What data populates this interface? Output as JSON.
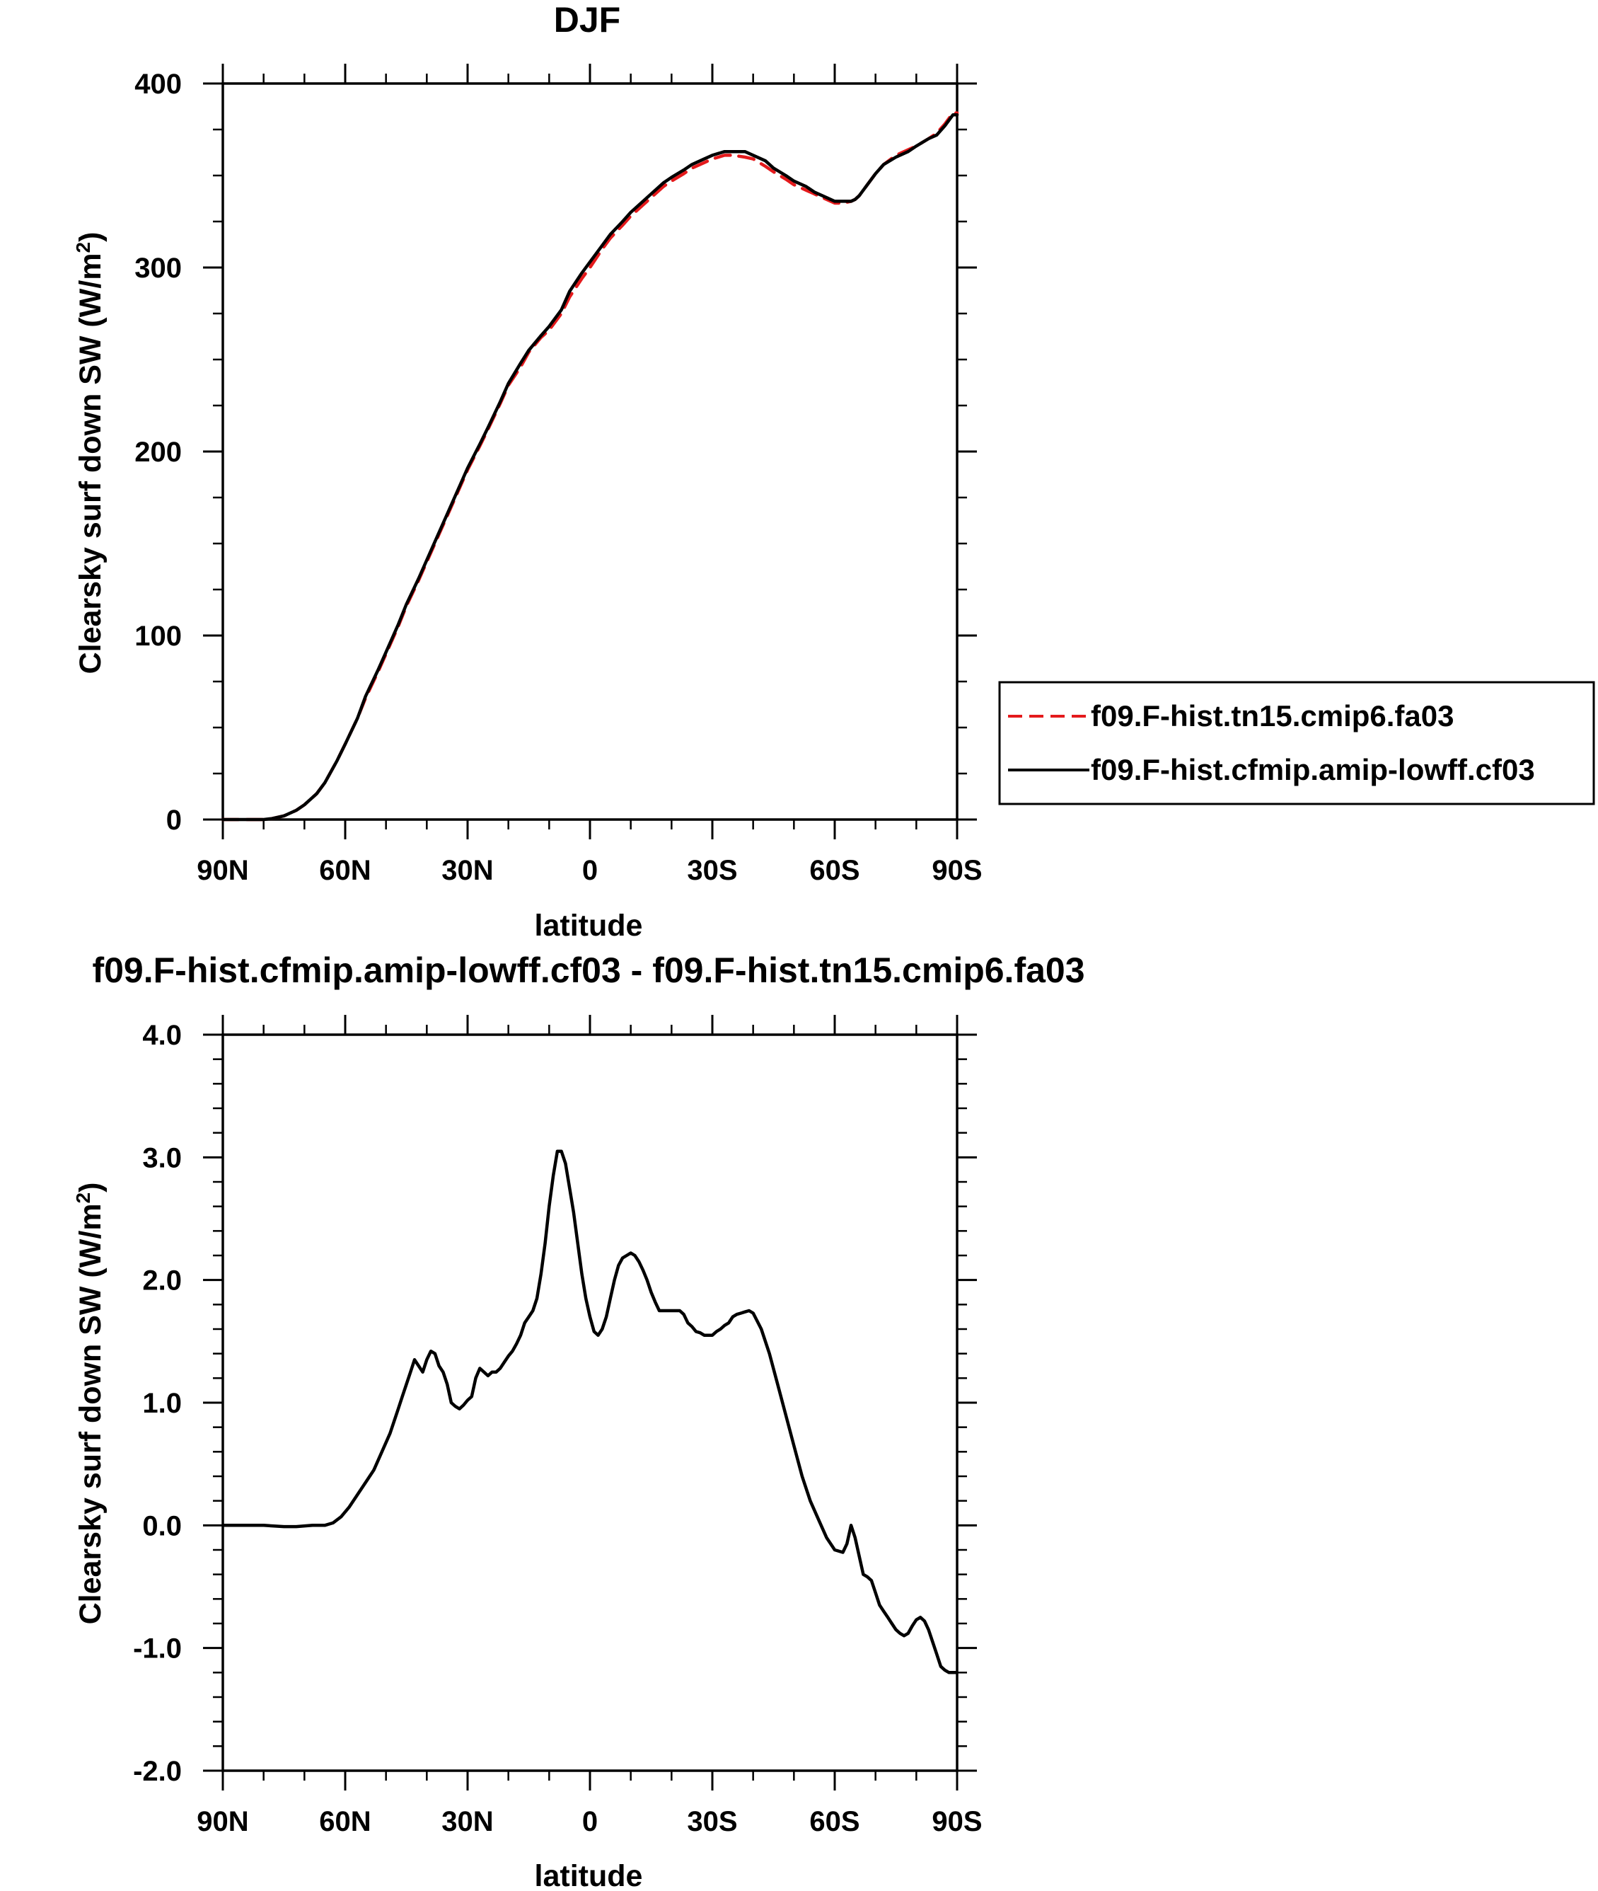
{
  "chart_data": [
    {
      "type": "line",
      "title": "DJF",
      "xlabel": "latitude",
      "ylabel": "Clearsky surf down SW (W/m",
      "ylabel_sup": "2",
      "ylabel_close": ")",
      "xlim": [
        90,
        -90
      ],
      "ylim": [
        0,
        400
      ],
      "x_ticks": [
        90,
        60,
        30,
        0,
        -30,
        -60,
        -90
      ],
      "x_tick_labels": [
        "90N",
        "60N",
        "30N",
        "0",
        "30S",
        "60S",
        "90S"
      ],
      "y_ticks": [
        0,
        100,
        200,
        300,
        400
      ],
      "y_tick_labels": [
        "0",
        "100",
        "200",
        "300",
        "400"
      ],
      "legend_position": "right",
      "series": [
        {
          "name": "f09.F-hist.tn15.cmip6.fa03",
          "color": "#e41a1c",
          "dash": "dashed",
          "x": [
            90,
            85,
            80,
            78,
            75,
            72,
            70,
            67,
            65,
            62,
            60,
            57,
            55,
            52,
            50,
            47,
            45,
            42,
            40,
            37,
            35,
            32,
            30,
            27,
            25,
            22,
            20,
            17,
            15,
            12,
            10,
            7,
            5,
            2,
            0,
            -3,
            -5,
            -8,
            -10,
            -13,
            -15,
            -18,
            -20,
            -23,
            -25,
            -28,
            -30,
            -33,
            -35,
            -38,
            -40,
            -43,
            -45,
            -48,
            -50,
            -53,
            -55,
            -58,
            -60,
            -62,
            -64,
            -65,
            -66,
            -68,
            -70,
            -72,
            -75,
            -78,
            -80,
            -83,
            -85,
            -87,
            -89,
            -90
          ],
          "y": [
            0,
            0,
            0,
            0.5,
            2,
            5,
            8,
            14,
            20,
            32,
            41,
            55,
            66,
            80,
            90,
            105,
            116,
            130,
            140,
            155,
            165,
            180,
            190,
            203,
            212,
            226,
            236,
            246,
            254,
            262,
            266,
            275,
            284,
            294,
            300,
            310,
            316,
            323,
            328,
            334,
            338,
            344,
            347,
            351,
            354,
            357,
            359,
            361,
            361,
            360,
            359,
            355,
            352,
            348,
            345,
            342,
            340,
            337,
            335,
            335,
            336,
            337,
            339,
            345,
            351,
            356,
            361,
            364,
            366,
            370,
            373,
            378,
            384,
            384
          ]
        },
        {
          "name": "f09.F-hist.cfmip.amip-lowff.cf03",
          "color": "#000000",
          "dash": "solid",
          "x": [
            90,
            85,
            80,
            78,
            75,
            72,
            70,
            67,
            65,
            62,
            60,
            57,
            55,
            52,
            50,
            47,
            45,
            42,
            40,
            37,
            35,
            32,
            30,
            27,
            25,
            22,
            20,
            17,
            15,
            12,
            10,
            7,
            5,
            2,
            0,
            -3,
            -5,
            -8,
            -10,
            -13,
            -15,
            -18,
            -20,
            -23,
            -25,
            -28,
            -30,
            -33,
            -35,
            -38,
            -40,
            -43,
            -45,
            -48,
            -50,
            -53,
            -55,
            -58,
            -60,
            -62,
            -64,
            -65,
            -66,
            -68,
            -70,
            -72,
            -75,
            -78,
            -80,
            -83,
            -85,
            -87,
            -89,
            -90
          ],
          "y": [
            0,
            0,
            0,
            0.5,
            2,
            5,
            8,
            14,
            20,
            32,
            41,
            55,
            67,
            81,
            91,
            106,
            117,
            131,
            141,
            156,
            166,
            181,
            191,
            204,
            213,
            227,
            237,
            248,
            255,
            263,
            268,
            277,
            287,
            297,
            303,
            312,
            318,
            325,
            330,
            336,
            340,
            346,
            349,
            353,
            356,
            359,
            361,
            363,
            363,
            363,
            361,
            358,
            354,
            350,
            347,
            344,
            341,
            338,
            336,
            336,
            336,
            337,
            339,
            345,
            351,
            356,
            360,
            363,
            366,
            370,
            372,
            377,
            383,
            383
          ]
        }
      ]
    },
    {
      "type": "line",
      "title": "f09.F-hist.cfmip.amip-lowff.cf03 - f09.F-hist.tn15.cmip6.fa03",
      "xlabel": "latitude",
      "ylabel": "Clearsky surf down SW (W/m",
      "ylabel_sup": "2",
      "ylabel_close": ")",
      "xlim": [
        90,
        -90
      ],
      "ylim": [
        -2.0,
        4.0
      ],
      "x_ticks": [
        90,
        60,
        30,
        0,
        -30,
        -60,
        -90
      ],
      "x_tick_labels": [
        "90N",
        "60N",
        "30N",
        "0",
        "30S",
        "60S",
        "90S"
      ],
      "y_ticks": [
        -2.0,
        -1.0,
        0.0,
        1.0,
        2.0,
        3.0,
        4.0
      ],
      "y_tick_labels": [
        "-2.0",
        "-1.0",
        "0.0",
        "1.0",
        "2.0",
        "3.0",
        "4.0"
      ],
      "series": [
        {
          "color": "#000000",
          "dash": "solid",
          "x": [
            90,
            85,
            80,
            75,
            72,
            68,
            65,
            63,
            61,
            59,
            57,
            55,
            53,
            51,
            49,
            48,
            47,
            46,
            45,
            44,
            43,
            42,
            41,
            40,
            39,
            38,
            37,
            36,
            35,
            34,
            33,
            32,
            31,
            30,
            29,
            28,
            27,
            26,
            25,
            24,
            23,
            22,
            21,
            20,
            19,
            18,
            17,
            16,
            15,
            14,
            13,
            12,
            11,
            10,
            9,
            8,
            7,
            6,
            5,
            4,
            3,
            2,
            1,
            0,
            -1,
            -2,
            -3,
            -4,
            -5,
            -6,
            -7,
            -8,
            -9,
            -10,
            -11,
            -12,
            -13,
            -14,
            -15,
            -16,
            -17,
            -18,
            -19,
            -20,
            -21,
            -22,
            -23,
            -24,
            -25,
            -26,
            -27,
            -28,
            -29,
            -30,
            -31,
            -32,
            -33,
            -34,
            -35,
            -36,
            -37,
            -38,
            -39,
            -40,
            -42,
            -44,
            -46,
            -48,
            -50,
            -52,
            -54,
            -56,
            -58,
            -60,
            -62,
            -63,
            -64,
            -65,
            -66,
            -67,
            -68,
            -69,
            -70,
            -71,
            -72,
            -73,
            -74,
            -75,
            -76,
            -77,
            -78,
            -79,
            -80,
            -81,
            -82,
            -83,
            -84,
            -85,
            -86,
            -87,
            -88,
            -89,
            -90
          ],
          "y": [
            0,
            0,
            0,
            -0.01,
            -0.01,
            0,
            0,
            0.02,
            0.07,
            0.15,
            0.25,
            0.35,
            0.45,
            0.6,
            0.75,
            0.85,
            0.95,
            1.05,
            1.15,
            1.25,
            1.35,
            1.3,
            1.25,
            1.35,
            1.42,
            1.4,
            1.3,
            1.25,
            1.15,
            1.0,
            0.97,
            0.95,
            0.98,
            1.02,
            1.05,
            1.2,
            1.28,
            1.25,
            1.22,
            1.25,
            1.25,
            1.28,
            1.33,
            1.38,
            1.42,
            1.48,
            1.55,
            1.65,
            1.7,
            1.75,
            1.85,
            2.05,
            2.3,
            2.6,
            2.85,
            3.05,
            3.05,
            2.95,
            2.75,
            2.55,
            2.3,
            2.05,
            1.85,
            1.7,
            1.58,
            1.55,
            1.6,
            1.7,
            1.85,
            2.0,
            2.12,
            2.18,
            2.2,
            2.22,
            2.2,
            2.15,
            2.08,
            2.0,
            1.9,
            1.82,
            1.75,
            1.75,
            1.75,
            1.75,
            1.75,
            1.75,
            1.72,
            1.65,
            1.62,
            1.58,
            1.57,
            1.55,
            1.55,
            1.55,
            1.58,
            1.6,
            1.63,
            1.65,
            1.7,
            1.72,
            1.73,
            1.74,
            1.75,
            1.73,
            1.6,
            1.4,
            1.15,
            0.9,
            0.65,
            0.4,
            0.2,
            0.05,
            -0.1,
            -0.2,
            -0.22,
            -0.15,
            0.0,
            -0.1,
            -0.25,
            -0.4,
            -0.42,
            -0.45,
            -0.55,
            -0.65,
            -0.7,
            -0.75,
            -0.8,
            -0.85,
            -0.88,
            -0.9,
            -0.88,
            -0.82,
            -0.77,
            -0.75,
            -0.78,
            -0.85,
            -0.95,
            -1.05,
            -1.15,
            -1.18,
            -1.2,
            -1.2,
            -1.2
          ]
        }
      ]
    }
  ]
}
